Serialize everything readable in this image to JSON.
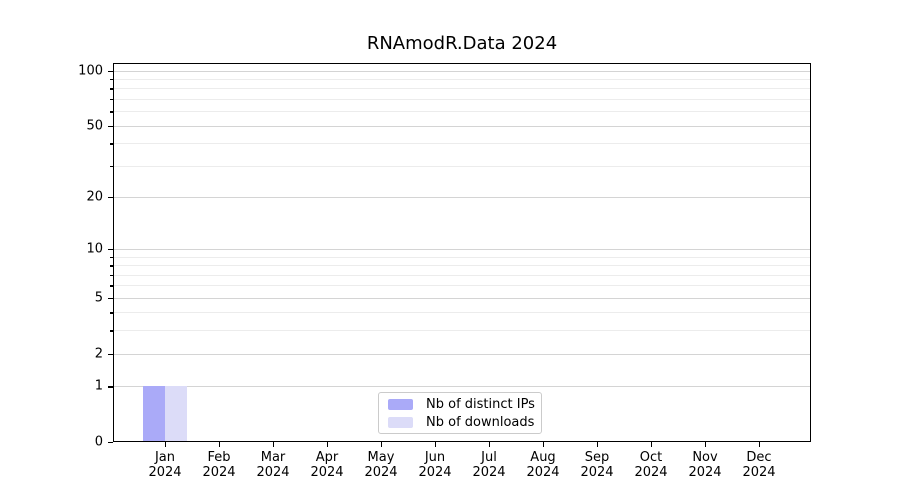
{
  "chart_data": {
    "type": "bar",
    "title": "RNAmodR.Data 2024",
    "categories": [
      "Jan",
      "Feb",
      "Mar",
      "Apr",
      "May",
      "Jun",
      "Jul",
      "Aug",
      "Sep",
      "Oct",
      "Nov",
      "Dec"
    ],
    "category_year_label": "2024",
    "series": [
      {
        "name": "Nb of distinct IPs",
        "color": "#aaaaf8",
        "values": [
          1,
          0,
          0,
          0,
          0,
          0,
          0,
          0,
          0,
          0,
          0,
          0
        ]
      },
      {
        "name": "Nb of downloads",
        "color": "#dcdcf8",
        "values": [
          1,
          0,
          0,
          0,
          0,
          0,
          0,
          0,
          0,
          0,
          0,
          0
        ]
      }
    ],
    "xlabel": "",
    "ylabel": "",
    "y_axis": {
      "scale": "log1p",
      "major_ticks": [
        100,
        50,
        20,
        10,
        5,
        2,
        1,
        0
      ],
      "tick_labels": [
        "100",
        "50",
        "20",
        "10",
        "5",
        "2",
        "1",
        "0"
      ],
      "minor_gridlines": [
        3,
        4,
        6,
        7,
        8,
        9,
        30,
        40,
        60,
        70,
        80,
        90
      ],
      "major_gridlines": [
        1,
        2,
        5,
        10,
        20,
        50,
        100
      ],
      "ylim": [
        0,
        110
      ]
    },
    "legend_position": "bottom-center",
    "grid": true
  },
  "colors": {
    "background": "#ffffff",
    "axis": "#000000",
    "major_grid": "#d4d4d4",
    "minor_grid": "#ececec",
    "legend_border": "#cbcbcb"
  }
}
